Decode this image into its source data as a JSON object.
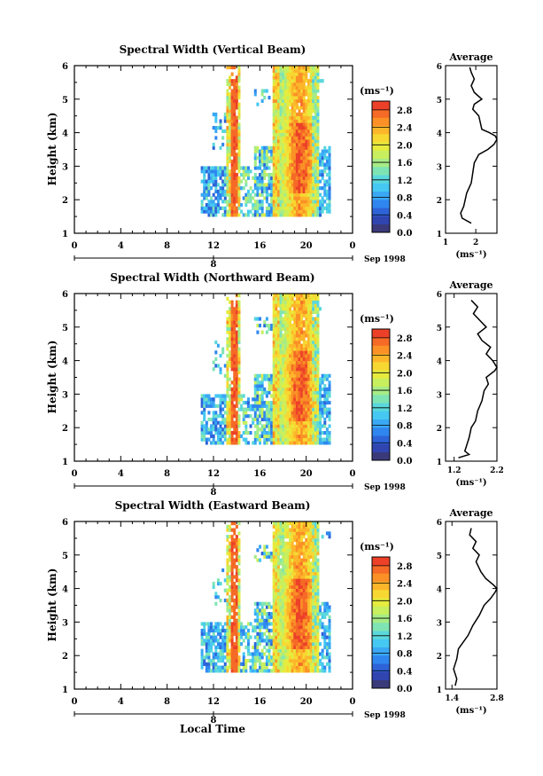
{
  "colorbar": {
    "unit": "(ms⁻¹)",
    "ticks": [
      "0.0",
      "0.4",
      "0.8",
      "1.2",
      "1.6",
      "2.0",
      "2.4",
      "2.8"
    ],
    "colors": [
      "#3a3a7a",
      "#3045b0",
      "#2e63d8",
      "#2f86ee",
      "#3aa8f4",
      "#45c8f2",
      "#5ad8dc",
      "#7fe4b4",
      "#a6ec86",
      "#c8ef5e",
      "#e6ec3e",
      "#f7d832",
      "#fcb62a",
      "#fb9126",
      "#f56a26",
      "#ec4128"
    ]
  },
  "shared": {
    "xticks": [
      "0",
      "4",
      "8",
      "12",
      "16",
      "20",
      "0"
    ],
    "date_tick": "8",
    "date_label": "Sep 1998",
    "xlabel": "Local Time",
    "ylabel": "Height (km)",
    "yticks": [
      "1",
      "2",
      "3",
      "4",
      "5",
      "6"
    ],
    "avg_title": "Average",
    "avg_unit": "(ms⁻¹)"
  },
  "chart_data": [
    {
      "type": "heatmap",
      "title": "Spectral Width (Vertical Beam)",
      "x_range": [
        0,
        24
      ],
      "ylim": [
        1,
        6
      ],
      "color_range": [
        0.0,
        3.0
      ],
      "coverage": "data present from about 11 to 22 local time, heights 1.5 to 6 km; maximum widths (about 2.8 ms⁻¹) near 13-14 h and 17-21 h, heights 2.3 to 4.2 km",
      "average_profile": {
        "xlim": [
          1.0,
          2.7
        ],
        "xticks": [
          "1",
          "2"
        ],
        "heights": [
          1.3,
          1.45,
          1.6,
          1.8,
          2.0,
          2.2,
          2.5,
          2.8,
          3.1,
          3.35,
          3.5,
          3.65,
          3.8,
          3.9,
          4.0,
          4.1,
          4.3,
          4.5,
          4.7,
          4.85,
          5.0,
          5.2,
          5.4,
          5.6,
          5.8,
          5.95
        ],
        "values": [
          1.85,
          1.55,
          1.5,
          1.6,
          1.65,
          1.7,
          1.85,
          1.9,
          1.95,
          2.1,
          2.4,
          2.6,
          2.7,
          2.65,
          2.45,
          2.2,
          2.15,
          2.1,
          1.9,
          1.95,
          2.2,
          1.95,
          1.85,
          1.95,
          1.85,
          1.8
        ]
      }
    },
    {
      "type": "heatmap",
      "title": "Spectral Width (Northward Beam)",
      "x_range": [
        0,
        24
      ],
      "ylim": [
        1,
        6
      ],
      "color_range": [
        0.0,
        3.0
      ],
      "coverage": "data present from about 11 to 22 local time, heights 1.5 to 6 km; maximum widths near 13-14 h and 17-21 h, heights 2.3 to 4.2 km",
      "average_profile": {
        "xlim": [
          1.0,
          2.2
        ],
        "xticks": [
          "1.2",
          "2.2"
        ],
        "heights": [
          1.1,
          1.2,
          1.3,
          1.5,
          1.7,
          2.0,
          2.2,
          2.5,
          2.8,
          3.1,
          3.3,
          3.5,
          3.7,
          3.8,
          3.9,
          4.0,
          4.2,
          4.4,
          4.6,
          4.8,
          5.0,
          5.2,
          5.4,
          5.6,
          5.8
        ],
        "values": [
          1.3,
          1.55,
          1.45,
          1.5,
          1.55,
          1.6,
          1.7,
          1.75,
          1.85,
          1.9,
          2.0,
          1.95,
          2.15,
          2.2,
          2.15,
          2.1,
          1.95,
          2.05,
          1.85,
          1.75,
          1.95,
          1.8,
          1.65,
          1.75,
          1.6
        ]
      }
    },
    {
      "type": "heatmap",
      "title": "Spectral Width (Eastward Beam)",
      "x_range": [
        0,
        24
      ],
      "ylim": [
        1,
        6
      ],
      "color_range": [
        0.0,
        3.0
      ],
      "coverage": "data present from about 11 to 22 local time, heights 1.5 to 6 km; maximum widths near 13-14 h and 17-21 h, heights 2.3 to 4.2 km",
      "average_profile": {
        "xlim": [
          1.2,
          2.8
        ],
        "xticks": [
          "1.4",
          "2.8"
        ],
        "heights": [
          1.1,
          1.3,
          1.6,
          1.9,
          2.2,
          2.4,
          2.6,
          2.9,
          3.2,
          3.5,
          3.7,
          3.9,
          4.0,
          4.1,
          4.3,
          4.5,
          4.8,
          5.0,
          5.2,
          5.4,
          5.6,
          5.8
        ],
        "values": [
          1.5,
          1.55,
          1.45,
          1.55,
          1.6,
          1.75,
          1.9,
          2.05,
          2.25,
          2.4,
          2.6,
          2.75,
          2.8,
          2.7,
          2.45,
          2.3,
          2.15,
          2.25,
          2.05,
          2.15,
          1.95,
          2.0
        ]
      }
    }
  ]
}
